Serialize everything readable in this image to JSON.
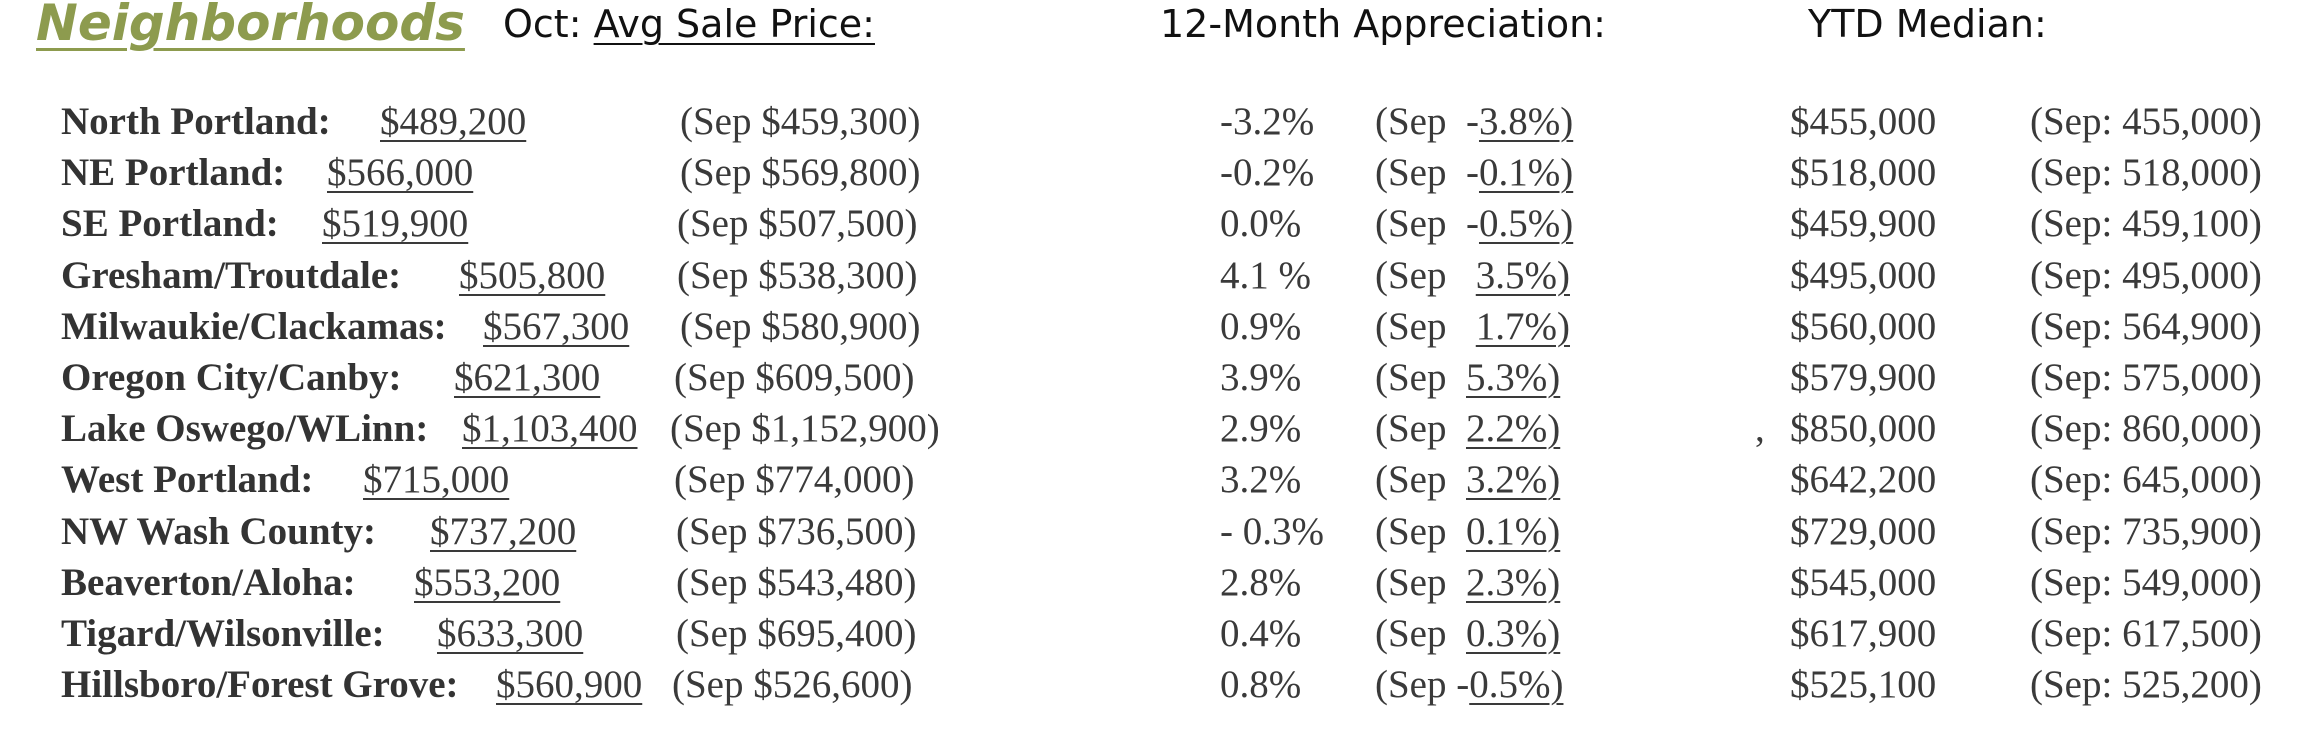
{
  "header": {
    "title": "Neighborhoods",
    "avg_prefix": "Oct: ",
    "avg_label": "Avg Sale Price:",
    "appreciation_label": "12-Month Appreciation:",
    "ytd_label": "YTD Median:"
  },
  "rows": [
    {
      "name": "North Portland:",
      "price": "$489,200",
      "sep_price": "(Sep $459,300)",
      "appreciation": "-3.2%",
      "sep_app_prefix": "(Sep  -",
      "sep_app_value": "3.8%)",
      "ytd": "$455,000",
      "sep_ytd": "(Sep: 455,000)"
    },
    {
      "name": "NE Portland:",
      "price": "$566,000",
      "sep_price": "(Sep $569,800)",
      "appreciation": "-0.2%",
      "sep_app_prefix": "(Sep  -",
      "sep_app_value": "0.1%)",
      "ytd": "$518,000",
      "sep_ytd": "(Sep: 518,000)"
    },
    {
      "name": "SE Portland:",
      "price": "$519,900",
      "sep_price": "(Sep $507,500)",
      "appreciation": "0.0%",
      "sep_app_prefix": "(Sep  -",
      "sep_app_value": "0.5%)",
      "ytd": "$459,900",
      "sep_ytd": "(Sep: 459,100)"
    },
    {
      "name": "Gresham/Troutdale:",
      "price": "$505,800",
      "sep_price": "(Sep $538,300)",
      "appreciation": "4.1 %",
      "sep_app_prefix": "(Sep   ",
      "sep_app_value": "3.5%)",
      "ytd": "$495,000",
      "sep_ytd": "(Sep: 495,000)"
    },
    {
      "name": "Milwaukie/Clackamas:",
      "price": "$567,300",
      "sep_price": "(Sep $580,900)",
      "appreciation": "0.9%",
      "sep_app_prefix": "(Sep   ",
      "sep_app_value": "1.7%)",
      "ytd": "$560,000",
      "sep_ytd": "(Sep: 564,900)"
    },
    {
      "name": "Oregon City/Canby:",
      "price": "$621,300",
      "sep_price": "(Sep $609,500)",
      "appreciation": "3.9%",
      "sep_app_prefix": "(Sep  ",
      "sep_app_value": "5.3%)",
      "ytd": "$579,900",
      "sep_ytd": "(Sep: 575,000)"
    },
    {
      "name": "Lake Oswego/WLinn:",
      "price": "$1,103,400",
      "sep_price": "(Sep $1,152,900)",
      "appreciation": "2.9%",
      "sep_app_prefix": "(Sep  ",
      "sep_app_value": "2.2%)",
      "ytd_prefix": ",   ",
      "ytd": "$850,000",
      "sep_ytd": "(Sep: 860,000)"
    },
    {
      "name": "West Portland:",
      "price": "$715,000",
      "sep_price": "(Sep $774,000)",
      "appreciation": "3.2%",
      "sep_app_prefix": "(Sep  ",
      "sep_app_value": "3.2%)",
      "ytd": "$642,200",
      "sep_ytd": "(Sep: 645,000)"
    },
    {
      "name": "NW Wash County:",
      "price": "$737,200",
      "sep_price": "(Sep $736,500)",
      "appreciation": "- 0.3%",
      "sep_app_prefix": "(Sep  ",
      "sep_app_value": "0.1%)",
      "ytd": "$729,000",
      "sep_ytd": "(Sep: 735,900)"
    },
    {
      "name": "Beaverton/Aloha:",
      "price": "$553,200",
      "sep_price": "(Sep $543,480)",
      "appreciation": "2.8%",
      "sep_app_prefix": "(Sep  ",
      "sep_app_value": "2.3%)",
      "ytd": "$545,000",
      "sep_ytd": "(Sep: 549,000)"
    },
    {
      "name": "Tigard/Wilsonville:",
      "price": "$633,300",
      "sep_price": "(Sep $695,400)",
      "appreciation": "0.4%",
      "sep_app_prefix": "(Sep  ",
      "sep_app_value": "0.3%)",
      "ytd": "$617,900",
      "sep_ytd": "(Sep: 617,500)"
    },
    {
      "name": "Hillsboro/Forest Grove:",
      "price": "$560,900",
      "sep_price": "(Sep $526,600)",
      "appreciation": "0.8%",
      "sep_app_prefix": "(Sep -",
      "sep_app_value": "0.5%)",
      "ytd": "$525,100",
      "sep_ytd": "(Sep: 525,200)"
    }
  ]
}
